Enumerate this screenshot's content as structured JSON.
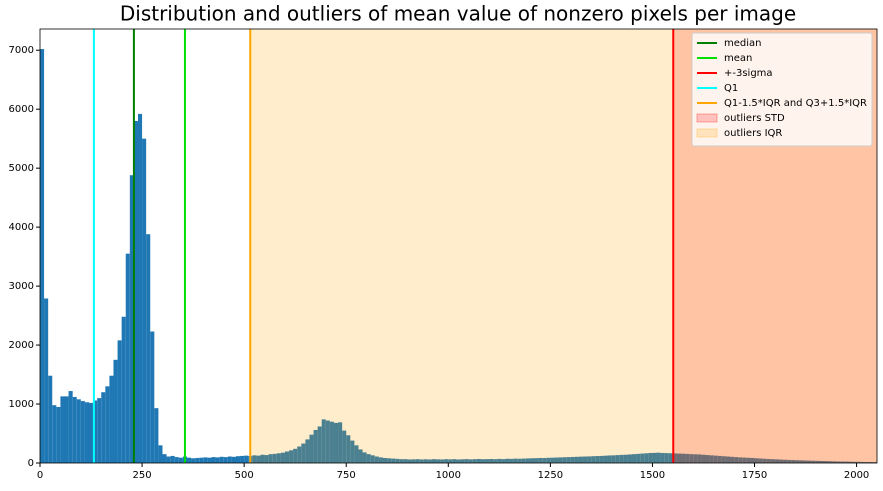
{
  "chart_data": {
    "type": "histogram",
    "title": "Distribution and outliers of mean value of nonzero pixels per image",
    "color": "#1f77b4",
    "bins": [
      0,
      10,
      20,
      30,
      40,
      50,
      60,
      70,
      80,
      90,
      100,
      110,
      120,
      130,
      140,
      150,
      160,
      170,
      180,
      190,
      200,
      210,
      220,
      230,
      240,
      250,
      260,
      270,
      280,
      290,
      300,
      310,
      320,
      330,
      340,
      350,
      360,
      370,
      380,
      390,
      400,
      410,
      420,
      430,
      440,
      450,
      460,
      470,
      480,
      490,
      500,
      510,
      520,
      530,
      540,
      550,
      560,
      570,
      580,
      590,
      600,
      610,
      620,
      630,
      640,
      650,
      660,
      670,
      680,
      690,
      700,
      710,
      720,
      730,
      740,
      750,
      760,
      770,
      780,
      790,
      800,
      810,
      820,
      830,
      840,
      850,
      860,
      870,
      880,
      890,
      900,
      910,
      920,
      930,
      940,
      950,
      960,
      970,
      980,
      990,
      1000,
      1010,
      1020,
      1030,
      1040,
      1050,
      1060,
      1070,
      1080,
      1090,
      1100,
      1110,
      1120,
      1130,
      1140,
      1150,
      1160,
      1170,
      1180,
      1190,
      1200,
      1210,
      1220,
      1230,
      1240,
      1250,
      1260,
      1270,
      1280,
      1290,
      1300,
      1310,
      1320,
      1330,
      1340,
      1350,
      1360,
      1370,
      1380,
      1390,
      1400,
      1410,
      1420,
      1430,
      1440,
      1450,
      1460,
      1470,
      1480,
      1490,
      1500,
      1510,
      1520,
      1530,
      1540,
      1550,
      1560,
      1570,
      1580,
      1590,
      1600,
      1610,
      1620,
      1630,
      1640,
      1650,
      1660,
      1670,
      1680,
      1690,
      1700,
      1710,
      1720,
      1730,
      1740,
      1750,
      1760,
      1770,
      1780,
      1790,
      1800,
      1810,
      1820,
      1830,
      1840,
      1850,
      1860,
      1870,
      1880,
      1890,
      1900,
      1910,
      1920,
      1930,
      1940,
      1950,
      1960,
      1970,
      1980,
      1990,
      2000,
      2010,
      2020,
      2030,
      2040,
      2050
    ],
    "counts": [
      7020,
      2790,
      1480,
      980,
      950,
      1130,
      1130,
      1220,
      1120,
      1080,
      1050,
      1030,
      1020,
      1060,
      1100,
      1200,
      1300,
      1480,
      1750,
      2080,
      2480,
      3550,
      4880,
      5800,
      5920,
      5500,
      3880,
      2230,
      930,
      300,
      150,
      110,
      120,
      100,
      90,
      110,
      90,
      80,
      85,
      90,
      95,
      90,
      100,
      95,
      105,
      100,
      110,
      105,
      115,
      120,
      125,
      120,
      130,
      125,
      140,
      135,
      150,
      155,
      165,
      175,
      195,
      215,
      240,
      280,
      330,
      400,
      480,
      560,
      620,
      740,
      720,
      700,
      680,
      690,
      550,
      470,
      380,
      300,
      230,
      180,
      150,
      130,
      110,
      95,
      85,
      80,
      75,
      70,
      65,
      65,
      60,
      62,
      65,
      60,
      63,
      60,
      65,
      62,
      60,
      65,
      62,
      65,
      60,
      63,
      66,
      62,
      65,
      68,
      64,
      66,
      68,
      65,
      70,
      66,
      72,
      70,
      74,
      72,
      75,
      78,
      80,
      82,
      85,
      84,
      88,
      90,
      92,
      95,
      98,
      100,
      102,
      105,
      108,
      110,
      112,
      115,
      118,
      120,
      124,
      128,
      130,
      134,
      138,
      140,
      145,
      150,
      155,
      160,
      165,
      170,
      172,
      175,
      170,
      168,
      165,
      162,
      160,
      158,
      155,
      150,
      148,
      145,
      140,
      135,
      130,
      125,
      120,
      115,
      110,
      105,
      100,
      95,
      92,
      88,
      85,
      80,
      76,
      72,
      68,
      65,
      62,
      58,
      55,
      52,
      50,
      47,
      45,
      42,
      40,
      38,
      36,
      34,
      32,
      30,
      28,
      26,
      25,
      24,
      22,
      20,
      20,
      18,
      17,
      16,
      15
    ],
    "vlines": [
      {
        "name": "median",
        "color": "#008000",
        "value": 230
      },
      {
        "name": "mean",
        "color": "#00e000",
        "value": 355
      },
      {
        "name": "+-3sigma",
        "color": "#ff0000",
        "value": 1551
      },
      {
        "name": "Q1",
        "color": "#00ffff",
        "value": 132
      },
      {
        "name": "Q1-1.5*IQR and Q3+1.5*IQR",
        "color": "#ffa500",
        "value": 515
      }
    ],
    "spans": [
      {
        "name": "outliers STD",
        "color": "#ff0000",
        "start": 1551
      },
      {
        "name": "outliers IQR",
        "color": "#ffa500",
        "start": 515
      }
    ],
    "xlim": [
      0,
      2050
    ],
    "ylim": [
      0,
      7360
    ],
    "xticks": [
      0,
      250,
      500,
      750,
      1000,
      1250,
      1500,
      1750,
      2000
    ],
    "yticks": [
      0,
      1000,
      2000,
      3000,
      4000,
      5000,
      6000,
      7000
    ],
    "legend": "upper right"
  }
}
